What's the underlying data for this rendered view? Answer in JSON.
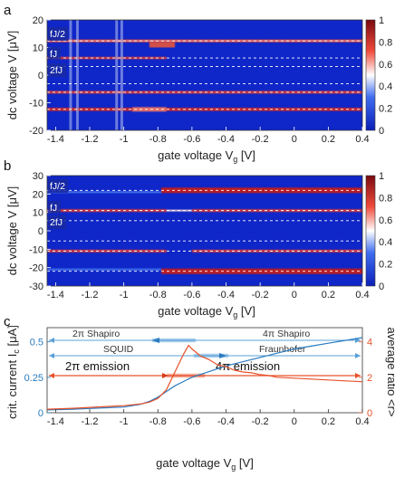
{
  "panels": {
    "a": "a",
    "b": "b",
    "c": "c"
  },
  "heatmap_common": {
    "xlabel": "gate voltage V",
    "xlabel_sub": "g",
    "xlabel_unit": "[V]",
    "ylabel": "dc voltage V [μV]",
    "xticks": [
      -1.4,
      -1.2,
      -1,
      -0.8,
      -0.6,
      -0.4,
      -0.2,
      0,
      0.2,
      0.4
    ],
    "xtick_labels": [
      "-1.4",
      "-1.2",
      "-1",
      "-0.8",
      "-0.6",
      "-0.4",
      "-0.2",
      "0",
      "0.2",
      "0.4"
    ],
    "colorbar_ticks": [
      0,
      0.2,
      0.4,
      0.6,
      0.8,
      1
    ],
    "colorbar_labels": [
      "0",
      "0.2",
      "0.4",
      "0.6",
      "0.8",
      "1"
    ],
    "line_labels": [
      "fJ/2",
      "fJ",
      "2fJ"
    ]
  },
  "panel_a": {
    "yticks": [
      -20,
      -10,
      0,
      10,
      20
    ],
    "ytick_labels": [
      "-20",
      "-10",
      "0",
      "10",
      "20"
    ],
    "ylim": [
      -20,
      20
    ],
    "dashed_lines": [
      12.4,
      6.2,
      3.1,
      -3.1,
      -6.2,
      -12.4
    ]
  },
  "panel_b": {
    "yticks": [
      -30,
      -20,
      -10,
      0,
      10,
      20,
      30
    ],
    "ytick_labels": [
      "-30",
      "-20",
      "-10",
      "0",
      "10",
      "20",
      "30"
    ],
    "ylim": [
      -30,
      30
    ],
    "dashed_lines": [
      22,
      11,
      5.5,
      -5.5,
      -11,
      -22
    ]
  },
  "chart_data": {
    "type": "line",
    "xlabel": "gate voltage V",
    "xlabel_sub": "g",
    "xlabel_unit": "[V]",
    "ylabel_left": "crit. current I",
    "ylabel_left_sub": "c",
    "ylabel_left_unit": "[μA]",
    "ylabel_right": "average ratio <r>",
    "xlim": [
      -1.45,
      0.4
    ],
    "ylim_left": [
      0,
      0.6
    ],
    "ylim_right": [
      0,
      4.8
    ],
    "xticks": [
      -1.4,
      -1.2,
      -1,
      -0.8,
      -0.6,
      -0.4,
      -0.2,
      0,
      0.2,
      0.4
    ],
    "xtick_labels": [
      "-1.4",
      "-1.2",
      "-1",
      "-0.8",
      "-0.6",
      "-0.4",
      "-0.2",
      "0",
      "0.2",
      "0.4"
    ],
    "yticks_left": [
      0,
      0.25,
      0.5
    ],
    "ytick_left_labels": [
      "0",
      "0.25",
      "0.5"
    ],
    "yticks_right": [
      0,
      2,
      4
    ],
    "ytick_right_labels": [
      "0",
      "2",
      "4"
    ],
    "series": [
      {
        "axis": "left",
        "color": "#2a7bc0",
        "x": [
          -1.45,
          -1.3,
          -1.2,
          -1.1,
          -1.0,
          -0.95,
          -0.9,
          -0.85,
          -0.8,
          -0.75,
          -0.7,
          -0.65,
          -0.6,
          -0.5,
          -0.4,
          -0.3,
          -0.2,
          -0.1,
          0,
          0.1,
          0.2,
          0.3,
          0.4
        ],
        "y": [
          0.02,
          0.025,
          0.03,
          0.035,
          0.04,
          0.05,
          0.06,
          0.08,
          0.11,
          0.15,
          0.19,
          0.22,
          0.25,
          0.29,
          0.33,
          0.36,
          0.39,
          0.42,
          0.45,
          0.47,
          0.49,
          0.51,
          0.53
        ]
      },
      {
        "axis": "right",
        "color": "#e8502a",
        "x": [
          -1.45,
          -1.3,
          -1.2,
          -1.1,
          -1.0,
          -0.95,
          -0.9,
          -0.85,
          -0.8,
          -0.75,
          -0.7,
          -0.65,
          -0.62,
          -0.6,
          -0.55,
          -0.5,
          -0.45,
          -0.4,
          -0.35,
          -0.3,
          -0.25,
          -0.2,
          -0.15,
          -0.1,
          0,
          0.1,
          0.2,
          0.3,
          0.4
        ],
        "y": [
          0.2,
          0.25,
          0.3,
          0.35,
          0.4,
          0.45,
          0.5,
          0.6,
          0.8,
          1.3,
          2.3,
          3.3,
          3.8,
          3.6,
          3.2,
          3.0,
          2.7,
          2.6,
          2.4,
          2.3,
          2.25,
          2.15,
          2.1,
          2.0,
          1.95,
          1.9,
          1.85,
          1.8,
          1.75
        ]
      }
    ],
    "annotations": {
      "shapiro_left": "2π Shapiro",
      "shapiro_right": "4π Shapiro",
      "squid": "SQUID",
      "fraunhofer": "Fraunhofer",
      "emission_left": "2π emission",
      "emission_right": "4π emission"
    }
  }
}
